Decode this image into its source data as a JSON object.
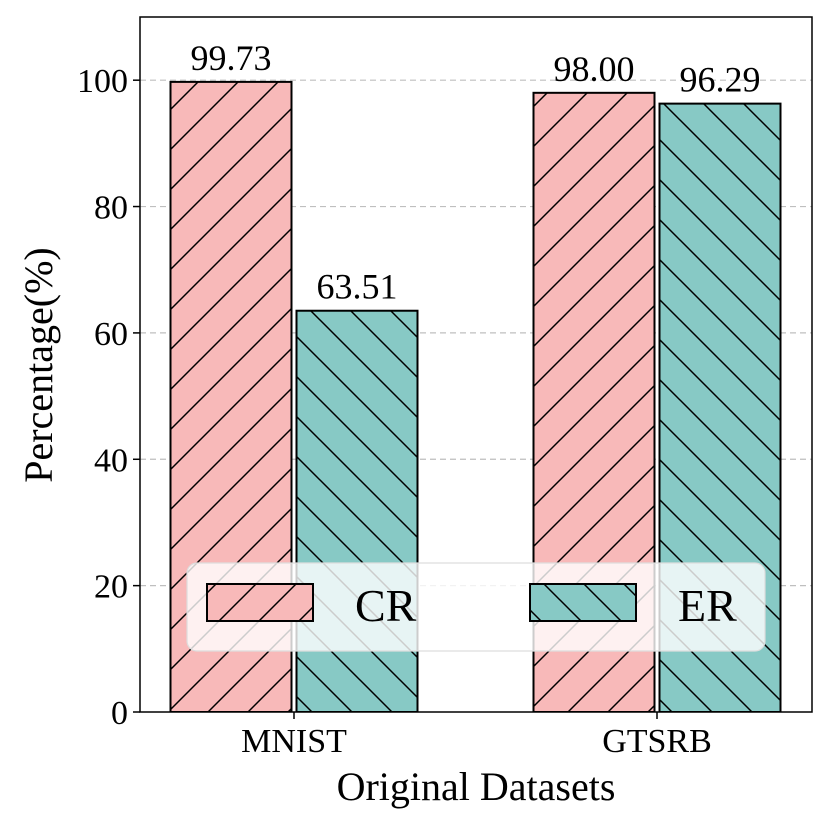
{
  "chart_data": {
    "type": "bar",
    "categories": [
      "MNIST",
      "GTSRB"
    ],
    "series": [
      {
        "name": "CR",
        "values": [
          99.73,
          98.0
        ],
        "labels": [
          "99.73",
          "98.00"
        ],
        "color": "#F8B9B9",
        "hatch": "/"
      },
      {
        "name": "ER",
        "values": [
          63.51,
          96.29
        ],
        "labels": [
          "63.51",
          "96.29"
        ],
        "color": "#87C9C5",
        "hatch": "\\"
      }
    ],
    "title": "",
    "xlabel": "Original Datasets",
    "ylabel": "Percentage(%)",
    "ylim": [
      0,
      110
    ],
    "yticks": [
      0,
      20,
      40,
      60,
      80,
      100
    ],
    "grid": "y-dashed",
    "legend_position": "lower-center"
  }
}
